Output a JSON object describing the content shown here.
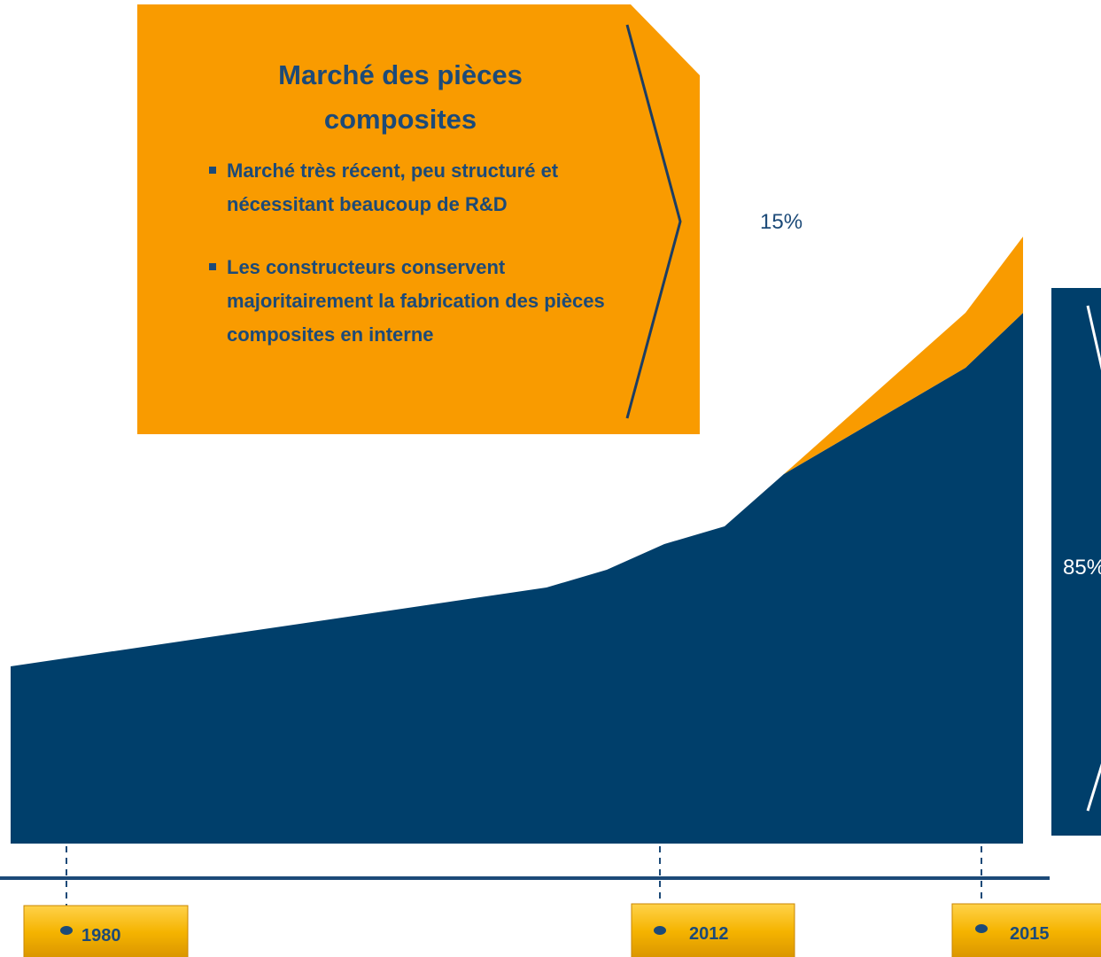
{
  "box": {
    "title": "Marché des pièces composites",
    "bullets": [
      "Marché très récent, peu structuré et nécessitant beaucoup de R&D",
      "Les constructeurs conservent majoritairement la fabrication des pièces composites en interne"
    ]
  },
  "share_top": "15%",
  "share_bottom": "85%",
  "timeline": [
    "1980",
    "2012",
    "2015"
  ]
}
